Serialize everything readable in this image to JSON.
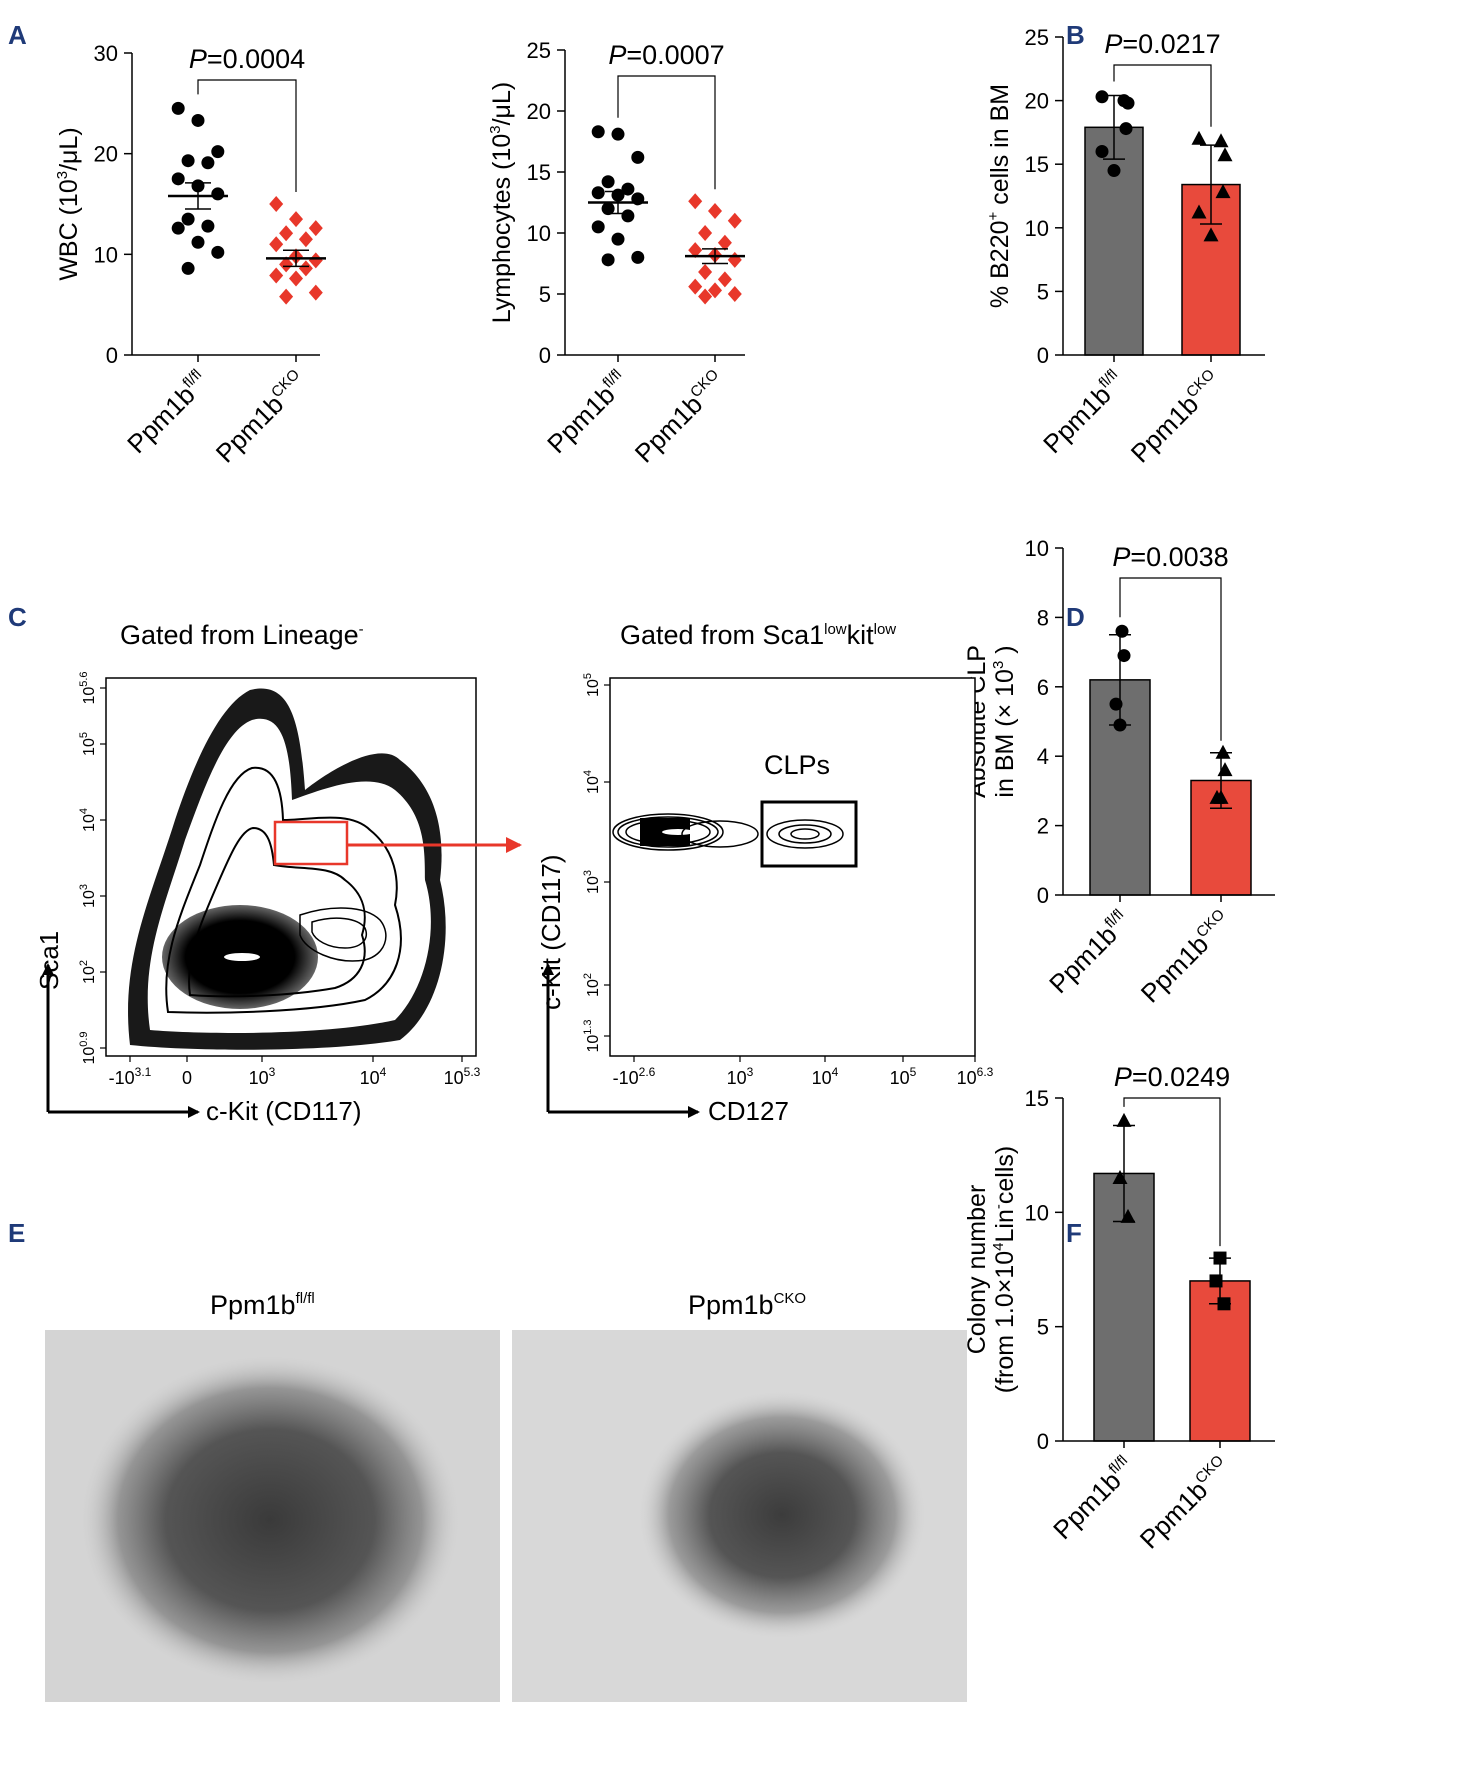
{
  "panels": {
    "A": "A",
    "B": "B",
    "C": "C",
    "D": "D",
    "E": "E",
    "F": "F"
  },
  "groups": {
    "base": "Ppm1b",
    "wt_sup": "fl/fl",
    "cko_sup": "CKO"
  },
  "colors": {
    "wt": "#000000",
    "cko": "#e8372a",
    "wt_bar": "#6e6e6e",
    "cko_bar": "#e84a3c"
  },
  "flow": {
    "left_title_main": "Gated from Lineage",
    "left_title_sup": "-",
    "right_title_main": "Gated from Sca1",
    "right_title_sup1": "low",
    "right_title_mid": "kit",
    "right_title_sup2": "low",
    "left_ylabel": "Sca1",
    "left_xlabel": "c-Kit (CD117)",
    "right_ylabel": "c-Kit (CD117)",
    "right_xlabel": "CD127",
    "gate_label": "CLPs",
    "left_xticks": [
      "-10",
      "0",
      "10",
      "10",
      "10"
    ],
    "left_xtick_sups": [
      "3.1",
      "",
      "3",
      "4",
      "5.3"
    ],
    "left_yticks": [
      "10",
      "10",
      "10",
      "10",
      "10",
      "10"
    ],
    "left_ytick_sups": [
      "0.9",
      "2",
      "3",
      "4",
      "5",
      "5.6"
    ],
    "right_xticks": [
      "-10",
      "10",
      "10",
      "10",
      "10"
    ],
    "right_xtick_sups": [
      "2.6",
      "3",
      "4",
      "5",
      "6.3"
    ],
    "right_yticks": [
      "10",
      "10",
      "10",
      "10",
      "10"
    ],
    "right_ytick_sups": [
      "1.3",
      "2",
      "3",
      "4",
      "5"
    ]
  },
  "colony_images": {
    "left_label_base": "Ppm1b",
    "left_label_sup": "fl/fl",
    "right_label_base": "Ppm1b",
    "right_label_sup": "CKO"
  },
  "chart_data": [
    {
      "id": "A1",
      "type": "scatter",
      "title": "",
      "ylabel_main": "WBC (10",
      "ylabel_sup": "3",
      "ylabel_end": "/μL)",
      "ylim": [
        0,
        30
      ],
      "yticks": [
        "0",
        "10",
        "20",
        "30"
      ],
      "p_prefix": "P",
      "p_value": "=0.0004",
      "series": [
        {
          "name": "Ppm1b fl/fl",
          "marker": "circle",
          "values": [
            24.5,
            23.3,
            20.2,
            19.3,
            19.1,
            17.5,
            16.8,
            16.0,
            13.5,
            12.8,
            12.6,
            11.2,
            10.2,
            8.6
          ],
          "mean": 15.8,
          "sem": 1.3
        },
        {
          "name": "Ppm1b CKO",
          "marker": "diamond",
          "values": [
            15.0,
            13.5,
            12.6,
            12.1,
            11.5,
            11.0,
            9.8,
            9.4,
            9.0,
            8.6,
            7.9,
            7.6,
            6.2,
            5.8
          ],
          "mean": 9.6,
          "sem": 0.8
        }
      ]
    },
    {
      "id": "A2",
      "type": "scatter",
      "ylabel_main": "Lymphocytes (10",
      "ylabel_sup": "3",
      "ylabel_end": "/μL)",
      "ylim": [
        0,
        25
      ],
      "yticks": [
        "0",
        "5",
        "10",
        "15",
        "20",
        "25"
      ],
      "p_prefix": "P",
      "p_value": "=0.0007",
      "series": [
        {
          "name": "Ppm1b fl/fl",
          "marker": "circle",
          "values": [
            18.3,
            18.1,
            16.2,
            14.2,
            13.6,
            13.3,
            13.1,
            12.8,
            12.0,
            11.4,
            10.5,
            9.5,
            8.0,
            7.8
          ],
          "mean": 12.5,
          "sem": 0.9
        },
        {
          "name": "Ppm1b CKO",
          "marker": "diamond",
          "values": [
            12.6,
            11.8,
            11.0,
            10.0,
            9.2,
            8.6,
            8.2,
            7.8,
            6.8,
            6.2,
            5.6,
            5.3,
            5.0,
            4.8
          ],
          "mean": 8.1,
          "sem": 0.6
        }
      ]
    },
    {
      "id": "B",
      "type": "bar",
      "ylabel_main": "% B220",
      "ylabel_sup": "+",
      "ylabel_end": " cells in BM",
      "ylim": [
        0,
        25
      ],
      "yticks": [
        "0",
        "5",
        "10",
        "15",
        "20",
        "25"
      ],
      "p_prefix": "P",
      "p_value": "=0.0217",
      "series": [
        {
          "name": "Ppm1b fl/fl",
          "marker": "circle",
          "mean": 17.9,
          "sd": 2.5,
          "values": [
            20.3,
            20.0,
            19.8,
            17.8,
            16.0,
            14.5
          ]
        },
        {
          "name": "Ppm1b CKO",
          "marker": "triangle",
          "mean": 13.4,
          "sd": 3.1,
          "values": [
            17.0,
            16.8,
            15.7,
            12.8,
            11.2,
            9.4
          ]
        }
      ]
    },
    {
      "id": "D",
      "type": "bar",
      "ylabel_line1": "Absolute CLP",
      "ylabel_line2": "in BM (× 10",
      "ylabel_sup": "3",
      "ylabel_end": " )",
      "ylim": [
        0,
        10
      ],
      "yticks": [
        "0",
        "2",
        "4",
        "6",
        "8",
        "10"
      ],
      "p_prefix": "P",
      "p_value": "=0.0038",
      "series": [
        {
          "name": "Ppm1b fl/fl",
          "marker": "circle",
          "mean": 6.2,
          "sd": 1.3,
          "values": [
            7.6,
            6.9,
            5.5,
            4.9
          ]
        },
        {
          "name": "Ppm1b CKO",
          "marker": "triangle",
          "mean": 3.3,
          "sd": 0.8,
          "values": [
            4.1,
            3.6,
            2.8,
            2.8
          ]
        }
      ]
    },
    {
      "id": "F",
      "type": "bar",
      "ylabel_line1": "Colony number",
      "ylabel_line2": "(from 1.0×10",
      "ylabel_sup": "4",
      "ylabel_mid": "Lin",
      "ylabel_sup2": "-",
      "ylabel_end": "cells)",
      "ylim": [
        0,
        15
      ],
      "yticks": [
        "0",
        "5",
        "10",
        "15"
      ],
      "p_prefix": "P",
      "p_value": "=0.0249",
      "series": [
        {
          "name": "Ppm1b fl/fl",
          "marker": "triangle",
          "mean": 11.7,
          "sd": 2.1,
          "values": [
            14.0,
            11.5,
            9.8
          ]
        },
        {
          "name": "Ppm1b CKO",
          "marker": "square",
          "mean": 7.0,
          "sd": 1.0,
          "values": [
            8.0,
            7.0,
            6.0
          ]
        }
      ]
    }
  ]
}
